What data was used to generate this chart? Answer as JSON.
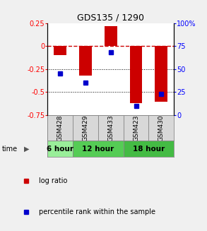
{
  "title": "GDS135 / 1290",
  "samples": [
    "GSM428",
    "GSM429",
    "GSM433",
    "GSM423",
    "GSM430"
  ],
  "log_ratios": [
    -0.1,
    -0.32,
    0.22,
    -0.62,
    -0.6
  ],
  "percentile_ranks": [
    45,
    35,
    68,
    10,
    23
  ],
  "ylim_left": [
    -0.75,
    0.25
  ],
  "ylim_right": [
    0,
    100
  ],
  "time_groups": [
    {
      "label": "6 hour",
      "start": 0,
      "end": 1,
      "color": "#99ee99"
    },
    {
      "label": "12 hour",
      "start": 1,
      "end": 3,
      "color": "#55cc55"
    },
    {
      "label": "18 hour",
      "start": 3,
      "end": 5,
      "color": "#44bb44"
    }
  ],
  "bar_color": "#cc0000",
  "dot_color": "#0000cc",
  "dashed_line_color": "#cc0000",
  "dotted_line_color": "#000000",
  "yticks_left": [
    0.25,
    0,
    -0.25,
    -0.5,
    -0.75
  ],
  "yticks_right": [
    100,
    75,
    50,
    25,
    0
  ],
  "ytick_labels_left": [
    "0.25",
    "0",
    "-0.25",
    "-0.5",
    "-0.75"
  ],
  "ytick_labels_right": [
    "100%",
    "75",
    "50",
    "25",
    "0"
  ],
  "background_color": "#f0f0f0",
  "plot_bg": "#ffffff",
  "bar_width": 0.5,
  "legend_log_ratio": "log ratio",
  "legend_percentile": "percentile rank within the sample",
  "gsm_bg": "#d8d8d8"
}
